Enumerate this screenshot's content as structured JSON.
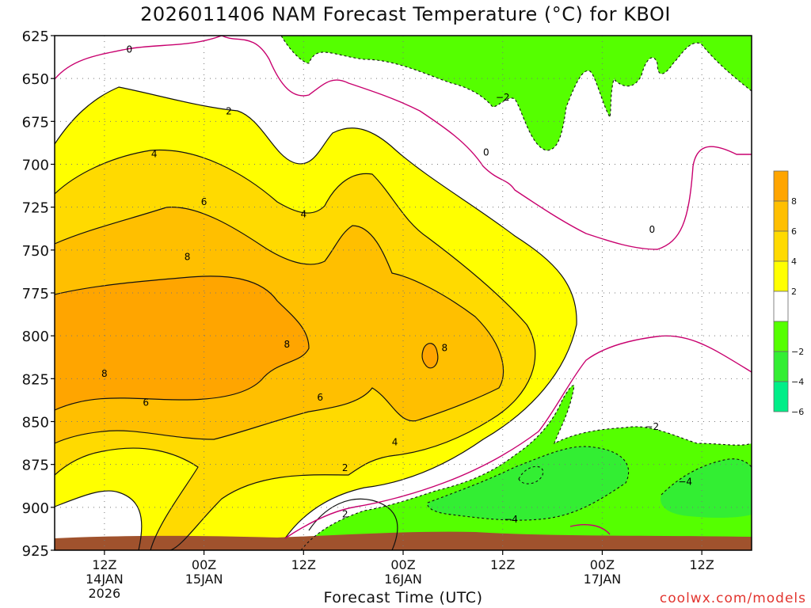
{
  "chart_data": {
    "type": "heatmap",
    "title": "2026011406 NAM Forecast Temperature (°C) for KBOI",
    "xlabel": "Forecast Time (UTC)",
    "ylabel": "",
    "credit": "coolwx.com/models",
    "y_axis": {
      "units": "hPa",
      "ticks": [
        "625",
        "650",
        "675",
        "700",
        "725",
        "750",
        "775",
        "800",
        "825",
        "850",
        "875",
        "900",
        "925"
      ],
      "ylim": [
        625,
        925
      ],
      "inverted": true
    },
    "x_axis": {
      "units": "forecast hour",
      "xlim": [
        0,
        84
      ],
      "ticks": [
        {
          "hour": 6,
          "label": "12Z",
          "date": "14JAN",
          "year": "2026"
        },
        {
          "hour": 18,
          "label": "00Z",
          "date": "15JAN",
          "year": ""
        },
        {
          "hour": 30,
          "label": "12Z",
          "date": "",
          "year": ""
        },
        {
          "hour": 42,
          "label": "00Z",
          "date": "16JAN",
          "year": ""
        },
        {
          "hour": 54,
          "label": "12Z",
          "date": "",
          "year": ""
        },
        {
          "hour": 66,
          "label": "00Z",
          "date": "17JAN",
          "year": ""
        },
        {
          "hour": 78,
          "label": "12Z",
          "date": "",
          "year": ""
        }
      ]
    },
    "colorbar": {
      "levels": [
        {
          "from": 8,
          "to": 10,
          "color": "#ffa500",
          "label": "8"
        },
        {
          "from": 6,
          "to": 8,
          "color": "#ffbf00",
          "label": "6"
        },
        {
          "from": 4,
          "to": 6,
          "color": "#ffda00",
          "label": "4"
        },
        {
          "from": 2,
          "to": 4,
          "color": "#ffff00",
          "label": "2"
        },
        {
          "from": -2,
          "to": 2,
          "color": "#ffffff",
          "label": ""
        },
        {
          "from": -4,
          "to": -2,
          "color": "#55ff00",
          "label": "−2"
        },
        {
          "from": -6,
          "to": -4,
          "color": "#33ee33",
          "label": "−4"
        },
        {
          "from": -8,
          "to": -6,
          "color": "#00ee88",
          "label": "−6"
        }
      ]
    },
    "contour_labels": [
      {
        "text": "0",
        "hour": 9,
        "p": 633
      },
      {
        "text": "2",
        "hour": 21,
        "p": 669
      },
      {
        "text": "4",
        "hour": 12,
        "p": 694
      },
      {
        "text": "6",
        "hour": 18,
        "p": 722
      },
      {
        "text": "8",
        "hour": 16,
        "p": 754
      },
      {
        "text": "8",
        "hour": 28,
        "p": 805
      },
      {
        "text": "8",
        "hour": 6,
        "p": 822
      },
      {
        "text": "6",
        "hour": 11,
        "p": 839
      },
      {
        "text": "6",
        "hour": 32,
        "p": 836
      },
      {
        "text": "4",
        "hour": 30,
        "p": 729
      },
      {
        "text": "4",
        "hour": 41,
        "p": 862
      },
      {
        "text": "2",
        "hour": 35,
        "p": 877
      },
      {
        "text": "2",
        "hour": 35,
        "p": 904
      },
      {
        "text": "−2",
        "hour": 54,
        "p": 661
      },
      {
        "text": "0",
        "hour": 52,
        "p": 693
      },
      {
        "text": "0",
        "hour": 72,
        "p": 738
      },
      {
        "text": "8",
        "hour": 47,
        "p": 807
      },
      {
        "text": "−2",
        "hour": 72,
        "p": 853
      },
      {
        "text": "−4",
        "hour": 76,
        "p": 885
      },
      {
        "text": "−4",
        "hour": 55,
        "p": 907
      }
    ]
  }
}
